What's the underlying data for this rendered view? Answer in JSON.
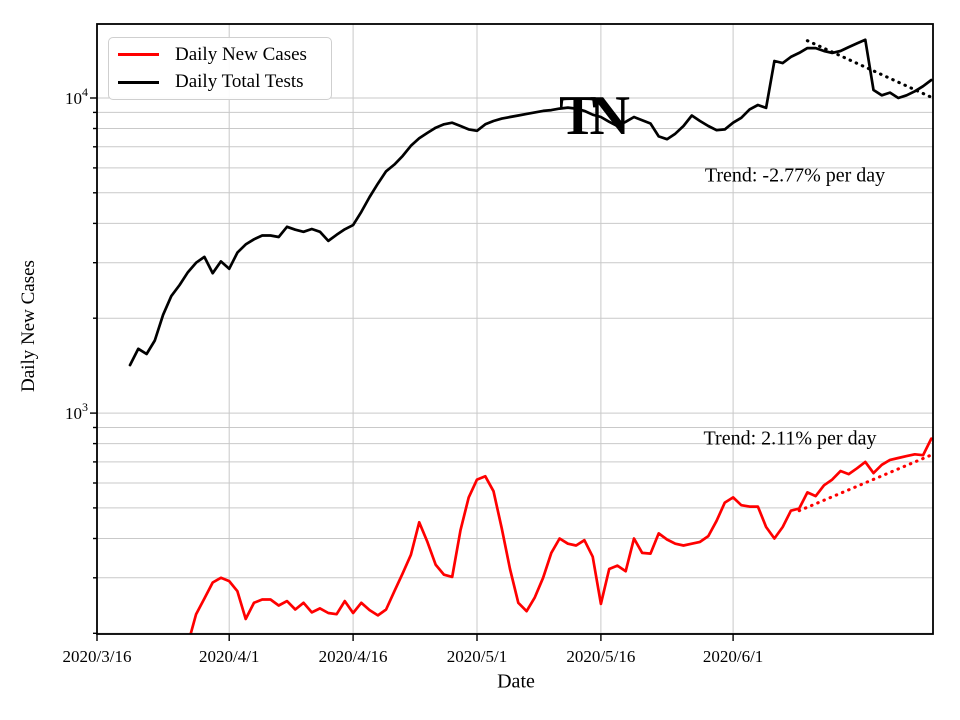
{
  "figure": {
    "background": "#ffffff"
  },
  "labels": {
    "ylabel": "Daily New Cases",
    "xlabel": "Date",
    "state_annotation": "TN",
    "trend_tests": "Trend: -2.77% per day",
    "trend_cases": "Trend: 2.11% per day"
  },
  "legend": {
    "items": [
      {
        "label": "Daily New Cases",
        "color": "#ff0000"
      },
      {
        "label": "Daily Total Tests",
        "color": "#000000"
      }
    ]
  },
  "colors": {
    "cases_line": "#ff0000",
    "tests_line": "#000000",
    "gridline": "#c9c9c9",
    "spine": "#000000"
  },
  "chart_data": {
    "type": "line",
    "title": "",
    "xlabel": "Date",
    "ylabel": "Daily New Cases",
    "annotation": "TN",
    "x_axis": {
      "start_date": "2020/3/16",
      "tick_labels": [
        "2020/3/16",
        "2020/4/1",
        "2020/4/16",
        "2020/5/1",
        "2020/5/16",
        "2020/6/1"
      ],
      "tick_days": [
        0,
        16,
        31,
        46,
        61,
        77
      ],
      "domain_days": [
        0,
        101.2
      ]
    },
    "y_axis": {
      "scale": "log",
      "major_ticks": [
        1000,
        10000
      ],
      "major_tick_labels": [
        "10^3",
        "10^4"
      ],
      "minor_ticks": [
        200,
        300,
        400,
        500,
        600,
        700,
        800,
        900,
        2000,
        3000,
        4000,
        5000,
        6000,
        7000,
        8000,
        9000
      ],
      "domain": [
        199,
        17170
      ],
      "grid": true
    },
    "series": [
      {
        "name": "Daily New Cases",
        "color": "#ff0000",
        "start_day": 10,
        "values": [
          140,
          185,
          230,
          258,
          290,
          300,
          293,
          272,
          222,
          250,
          256,
          256,
          245,
          253,
          238,
          250,
          233,
          240,
          232,
          230,
          253,
          232,
          250,
          237,
          228,
          238,
          272,
          310,
          355,
          450,
          390,
          330,
          307,
          302,
          425,
          540,
          615,
          630,
          565,
          430,
          320,
          250,
          235,
          260,
          300,
          360,
          400,
          385,
          380,
          395,
          350,
          248,
          320,
          328,
          315,
          400,
          360,
          358,
          415,
          397,
          385,
          380,
          385,
          390,
          407,
          455,
          520,
          540,
          510,
          505,
          505,
          435,
          400,
          435,
          490,
          498,
          560,
          545,
          590,
          615,
          655,
          640,
          668,
          700,
          645,
          685,
          710,
          720,
          730,
          740,
          735,
          830
        ]
      },
      {
        "name": "Daily Total Tests",
        "color": "#000000",
        "start_day": 4,
        "values": [
          1420,
          1600,
          1540,
          1700,
          2050,
          2350,
          2550,
          2800,
          3000,
          3130,
          2780,
          3030,
          2870,
          3230,
          3430,
          3560,
          3660,
          3660,
          3620,
          3900,
          3820,
          3760,
          3840,
          3760,
          3520,
          3680,
          3830,
          3950,
          4350,
          4850,
          5350,
          5850,
          6150,
          6550,
          7050,
          7450,
          7750,
          8050,
          8250,
          8350,
          8150,
          7950,
          7870,
          8250,
          8450,
          8600,
          8700,
          8800,
          8900,
          9000,
          9100,
          9150,
          9250,
          9320,
          9250,
          9100,
          8850,
          8700,
          8400,
          8150,
          8400,
          8700,
          8500,
          8300,
          7550,
          7400,
          7700,
          8150,
          8800,
          8450,
          8150,
          7900,
          7950,
          8350,
          8650,
          9200,
          9500,
          9300,
          13100,
          12900,
          13500,
          13900,
          14400,
          14400,
          14100,
          13900,
          14100,
          14500,
          14900,
          15300,
          10600,
          10200,
          10400,
          10000,
          10200,
          10500,
          10900,
          11400
        ]
      }
    ],
    "trendlines": [
      {
        "name": "tests-trendline",
        "label": "Trend: -2.77% per day",
        "rate_pct_per_day": -2.77,
        "color": "#000000",
        "start_day": 86,
        "end_day": 101.2,
        "start_value": 15200,
        "end_value": 10000
      },
      {
        "name": "cases-trendline",
        "label": "Trend: 2.11% per day",
        "rate_pct_per_day": 2.11,
        "color": "#ff0000",
        "start_day": 85,
        "end_day": 101.2,
        "start_value": 490,
        "end_value": 740
      }
    ],
    "legend_entries": [
      "Daily New Cases",
      "Daily Total Tests"
    ],
    "legend_position": "upper left"
  }
}
